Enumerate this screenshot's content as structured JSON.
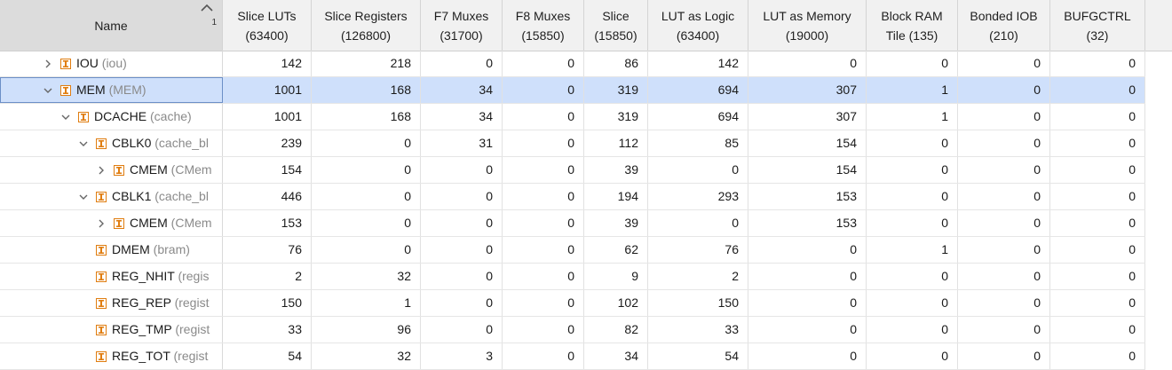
{
  "columns": [
    {
      "line1": "Name",
      "line2": ""
    },
    {
      "line1": "Slice LUTs",
      "line2": "(63400)"
    },
    {
      "line1": "Slice Registers",
      "line2": "(126800)"
    },
    {
      "line1": "F7 Muxes",
      "line2": "(31700)"
    },
    {
      "line1": "F8 Muxes",
      "line2": "(15850)"
    },
    {
      "line1": "Slice",
      "line2": "(15850)"
    },
    {
      "line1": "LUT as Logic",
      "line2": "(63400)"
    },
    {
      "line1": "LUT as Memory",
      "line2": "(19000)"
    },
    {
      "line1": "Block RAM",
      "line2": "Tile (135)"
    },
    {
      "line1": "Bonded IOB",
      "line2": "(210)"
    },
    {
      "line1": "BUFGCTRL",
      "line2": "(32)"
    }
  ],
  "sort": {
    "priority": "1",
    "direction": "ascending"
  },
  "rows": [
    {
      "name": "IOU",
      "module": "(iou)",
      "expander": "collapsed",
      "selected": false,
      "values": [
        "142",
        "218",
        "0",
        "0",
        "86",
        "142",
        "0",
        "0",
        "0",
        "0"
      ]
    },
    {
      "name": "MEM",
      "module": "(MEM)",
      "expander": "expanded",
      "selected": true,
      "values": [
        "1001",
        "168",
        "34",
        "0",
        "319",
        "694",
        "307",
        "1",
        "0",
        "0"
      ]
    },
    {
      "name": "DCACHE",
      "module": "(cache)",
      "expander": "expanded",
      "selected": false,
      "values": [
        "1001",
        "168",
        "34",
        "0",
        "319",
        "694",
        "307",
        "1",
        "0",
        "0"
      ]
    },
    {
      "name": "CBLK0",
      "module": "(cache_bl",
      "expander": "expanded",
      "selected": false,
      "values": [
        "239",
        "0",
        "31",
        "0",
        "112",
        "85",
        "154",
        "0",
        "0",
        "0"
      ]
    },
    {
      "name": "CMEM",
      "module": "(CMem",
      "expander": "collapsed",
      "selected": false,
      "values": [
        "154",
        "0",
        "0",
        "0",
        "39",
        "0",
        "154",
        "0",
        "0",
        "0"
      ]
    },
    {
      "name": "CBLK1",
      "module": "(cache_bl",
      "expander": "expanded",
      "selected": false,
      "values": [
        "446",
        "0",
        "0",
        "0",
        "194",
        "293",
        "153",
        "0",
        "0",
        "0"
      ]
    },
    {
      "name": "CMEM",
      "module": "(CMem",
      "expander": "collapsed",
      "selected": false,
      "values": [
        "153",
        "0",
        "0",
        "0",
        "39",
        "0",
        "153",
        "0",
        "0",
        "0"
      ]
    },
    {
      "name": "DMEM",
      "module": "(bram)",
      "expander": "none",
      "selected": false,
      "values": [
        "76",
        "0",
        "0",
        "0",
        "62",
        "76",
        "0",
        "1",
        "0",
        "0"
      ]
    },
    {
      "name": "REG_NHIT",
      "module": "(regis",
      "expander": "none",
      "selected": false,
      "values": [
        "2",
        "32",
        "0",
        "0",
        "9",
        "2",
        "0",
        "0",
        "0",
        "0"
      ]
    },
    {
      "name": "REG_REP",
      "module": "(regist",
      "expander": "none",
      "selected": false,
      "values": [
        "150",
        "1",
        "0",
        "0",
        "102",
        "150",
        "0",
        "0",
        "0",
        "0"
      ]
    },
    {
      "name": "REG_TMP",
      "module": "(regist",
      "expander": "none",
      "selected": false,
      "values": [
        "33",
        "96",
        "0",
        "0",
        "82",
        "33",
        "0",
        "0",
        "0",
        "0"
      ]
    },
    {
      "name": "REG_TOT",
      "module": "(regist",
      "expander": "none",
      "selected": false,
      "values": [
        "54",
        "32",
        "3",
        "0",
        "34",
        "54",
        "0",
        "0",
        "0",
        "0"
      ]
    }
  ],
  "colors": {
    "selection": "#cfe0fb",
    "module_text": "#8a8a8a",
    "cell_icon": "#e07d10"
  }
}
